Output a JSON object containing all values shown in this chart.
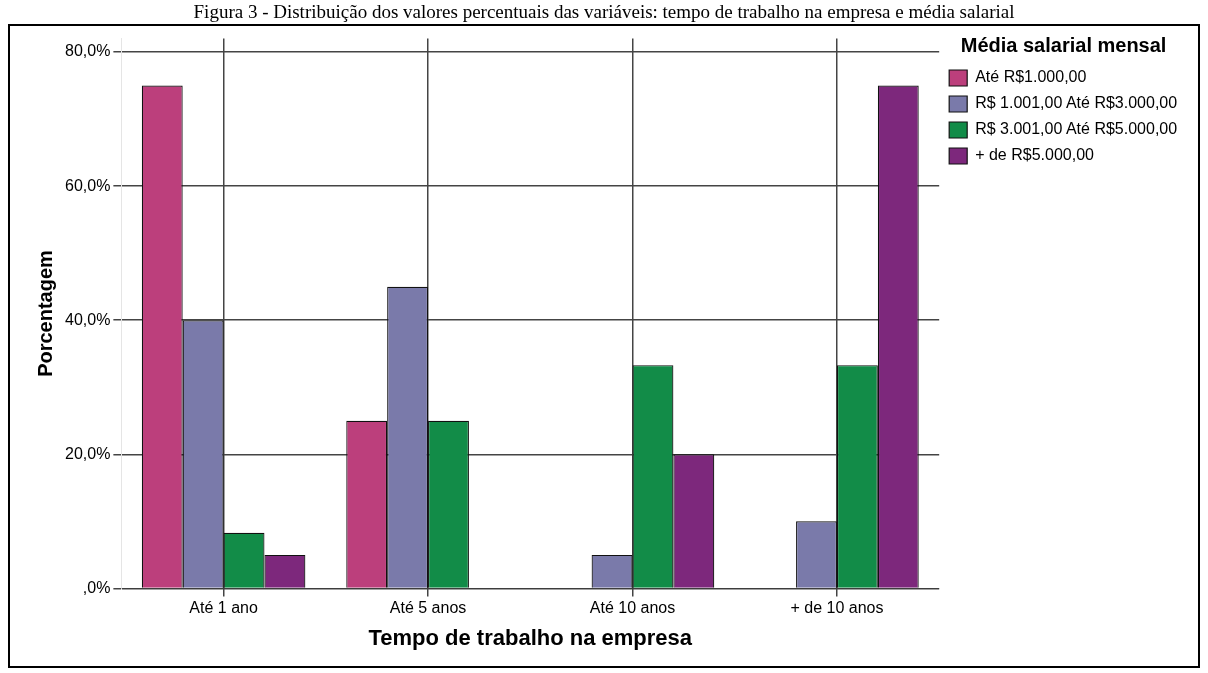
{
  "chart_data": {
    "type": "bar",
    "title": "Figura 3 - Distribuição dos valores percentuais das variáveis: tempo de trabalho na empresa e média salarial",
    "xlabel": "Tempo de trabalho na empresa",
    "ylabel": "Porcentagem",
    "legend_title": "Média salarial mensal",
    "categories": [
      "Até 1 ano",
      "Até 5 anos",
      "Até 10 anos",
      "+ de 10 anos"
    ],
    "series": [
      {
        "name": "Até R$1.000,00",
        "color": "#bc3f7c",
        "values": [
          75,
          25,
          0,
          0
        ]
      },
      {
        "name": "R$ 1.001,00 Até R$3.000,00",
        "color": "#7a7aaa",
        "values": [
          40,
          45,
          5,
          10
        ]
      },
      {
        "name": "R$ 3.001,00 Até R$5.000,00",
        "color": "#128c48",
        "values": [
          8.3,
          25,
          33.3,
          33.3
        ]
      },
      {
        "name": "+ de R$5.000,00",
        "color": "#7d287c",
        "values": [
          5,
          0,
          20,
          75
        ]
      }
    ],
    "ylim": [
      0,
      82
    ],
    "yticks": [
      {
        "value": 0,
        "label": ",0%"
      },
      {
        "value": 20,
        "label": "20,0%"
      },
      {
        "value": 40,
        "label": "40,0%"
      },
      {
        "value": 60,
        "label": "60,0%"
      },
      {
        "value": 80,
        "label": "80,0%"
      }
    ],
    "grid": true,
    "legend": "top right"
  }
}
